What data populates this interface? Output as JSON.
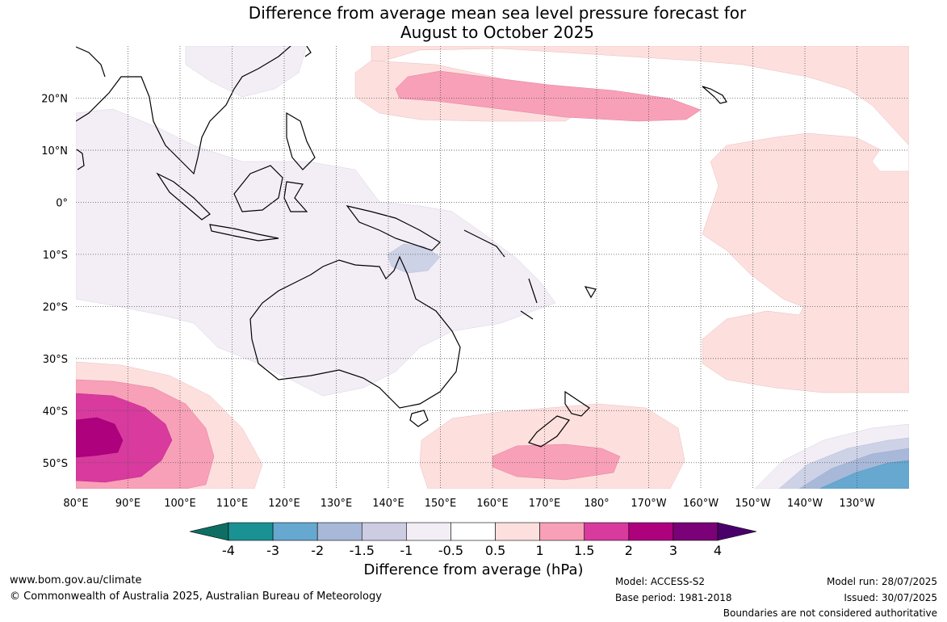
{
  "header": {
    "title_line1": "Difference from average mean sea level pressure forecast for",
    "title_line2": "August to October 2025"
  },
  "map": {
    "projection": "equirectangular",
    "lon_range": [
      80,
      240
    ],
    "lat_range": [
      -55,
      30
    ],
    "lon_ticks": [
      {
        "lon": 80,
        "label": "80°E"
      },
      {
        "lon": 90,
        "label": "90°E"
      },
      {
        "lon": 100,
        "label": "100°E"
      },
      {
        "lon": 110,
        "label": "110°E"
      },
      {
        "lon": 120,
        "label": "120°E"
      },
      {
        "lon": 130,
        "label": "130°E"
      },
      {
        "lon": 140,
        "label": "140°E"
      },
      {
        "lon": 150,
        "label": "150°E"
      },
      {
        "lon": 160,
        "label": "160°E"
      },
      {
        "lon": 170,
        "label": "170°E"
      },
      {
        "lon": 180,
        "label": "180°"
      },
      {
        "lon": 190,
        "label": "170°W"
      },
      {
        "lon": 200,
        "label": "160°W"
      },
      {
        "lon": 210,
        "label": "150°W"
      },
      {
        "lon": 220,
        "label": "140°W"
      },
      {
        "lon": 230,
        "label": "130°W"
      }
    ],
    "lat_ticks": [
      {
        "lat": 20,
        "label": "20°N"
      },
      {
        "lat": 10,
        "label": "10°N"
      },
      {
        "lat": 0,
        "label": "0°"
      },
      {
        "lat": -10,
        "label": "10°S"
      },
      {
        "lat": -20,
        "label": "20°S"
      },
      {
        "lat": -30,
        "label": "30°S"
      },
      {
        "lat": -40,
        "label": "40°S"
      },
      {
        "lat": -50,
        "label": "50°S"
      }
    ],
    "gridlines": "dotted"
  },
  "colorbar": {
    "ticks": [
      "-4",
      "-3",
      "-2",
      "-1.5",
      "-1",
      "-0.5",
      "0.5",
      "1",
      "1.5",
      "2",
      "3",
      "4"
    ],
    "colors": [
      "#0f6e63",
      "#1a9294",
      "#66a8d0",
      "#a8b8d8",
      "#cccce2",
      "#f3eef6",
      "#ffffff",
      "#fde0de",
      "#f8a0b8",
      "#d83a9e",
      "#ae017e",
      "#7a0177",
      "#49006a"
    ],
    "label": "Difference from average (hPa)"
  },
  "footer": {
    "url": "www.bom.gov.au/climate",
    "copyright": "© Commonwealth of Australia 2025, Australian Bureau of Meteorology",
    "model": "Model: ACCESS-S2",
    "base_period": "Base period: 1981-2018",
    "model_run": "Model run: 28/07/2025",
    "issued": "Issued: 30/07/2025",
    "disclaimer": "Boundaries are not considered authoritative"
  }
}
